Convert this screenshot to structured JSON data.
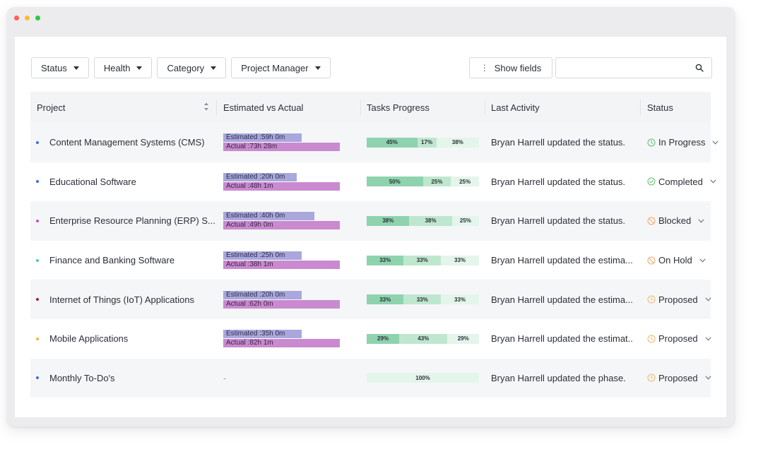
{
  "filters": [
    {
      "label": "Status",
      "name": "status-filter"
    },
    {
      "label": "Health",
      "name": "health-filter"
    },
    {
      "label": "Category",
      "name": "category-filter"
    },
    {
      "label": "Project Manager",
      "name": "project-manager-filter"
    }
  ],
  "show_fields_label": "Show fields",
  "search": {
    "placeholder": "",
    "value": ""
  },
  "columns": {
    "project": "Project",
    "est_vs_actual": "Estimated vs Actual",
    "tasks_progress": "Tasks Progress",
    "last_activity": "Last Activity",
    "status": "Status"
  },
  "rows": [
    {
      "project": "Content Management Systems (CMS)",
      "bullet_color": "#3f6fd8",
      "estimated": "Estimated :59h 0m",
      "actual": "Actual :73h 28m",
      "est_ratio": 0.67,
      "progress": [
        {
          "label": "45%",
          "value": 45
        },
        {
          "label": "17%",
          "value": 17
        },
        {
          "label": "38%",
          "value": 38
        }
      ],
      "activity": "Bryan Harrell updated the status.",
      "status": "In Progress",
      "status_icon": "clock-icon",
      "status_color": "#5cbf6a"
    },
    {
      "project": "Educational Software",
      "bullet_color": "#3f6fd8",
      "estimated": "Estimated :20h 0m",
      "actual": "Actual :48h 1m",
      "est_ratio": 0.63,
      "progress": [
        {
          "label": "50%",
          "value": 50
        },
        {
          "label": "25%",
          "value": 25
        },
        {
          "label": "25%",
          "value": 25
        }
      ],
      "activity": "Bryan Harrell updated the status.",
      "status": "Completed",
      "status_icon": "check-circle-icon",
      "status_color": "#5cbf6a"
    },
    {
      "project": "Enterprise Resource Planning (ERP) S...",
      "bullet_color": "#c352c9",
      "estimated": "Estimated :40h 0m",
      "actual": "Actual :49h 0m",
      "est_ratio": 0.78,
      "progress": [
        {
          "label": "38%",
          "value": 38
        },
        {
          "label": "38%",
          "value": 38
        },
        {
          "label": "25%",
          "value": 24
        }
      ],
      "activity": "Bryan Harrell updated the status.",
      "status": "Blocked",
      "status_icon": "blocked-icon",
      "status_color": "#f0a86a"
    },
    {
      "project": "Finance and Banking Software",
      "bullet_color": "#4fc3c4",
      "estimated": "Estimated :25h 0m",
      "actual": "Actual :38h 1m",
      "est_ratio": 0.67,
      "progress": [
        {
          "label": "33%",
          "value": 33
        },
        {
          "label": "33%",
          "value": 33
        },
        {
          "label": "33%",
          "value": 34
        }
      ],
      "activity": "Bryan Harrell updated the estima...",
      "status": "On Hold",
      "status_icon": "blocked-icon",
      "status_color": "#f0a86a"
    },
    {
      "project": "Internet of Things (IoT) Applications",
      "bullet_color": "#a3262e",
      "estimated": "Estimated :20h 0m",
      "actual": "Actual :62h 0m",
      "est_ratio": 0.67,
      "progress": [
        {
          "label": "33%",
          "value": 33
        },
        {
          "label": "33%",
          "value": 33
        },
        {
          "label": "33%",
          "value": 34
        }
      ],
      "activity": "Bryan Harrell updated the estima...",
      "status": "Proposed",
      "status_icon": "clock-icon",
      "status_color": "#f0b866"
    },
    {
      "project": "Mobile Applications",
      "bullet_color": "#f5b73a",
      "estimated": "Estimated :35h 0m",
      "actual": "Actual :82h 1m",
      "est_ratio": 0.67,
      "progress": [
        {
          "label": "29%",
          "value": 29
        },
        {
          "label": "43%",
          "value": 43
        },
        {
          "label": "29%",
          "value": 28
        }
      ],
      "activity": "Bryan Harrell updated the estimat..",
      "status": "Proposed",
      "status_icon": "clock-icon",
      "status_color": "#f0b866"
    },
    {
      "project": "Monthly To-Do's",
      "bullet_color": "#3f6fd8",
      "estimated": "",
      "actual": "",
      "est_dash": "-",
      "est_ratio": 0,
      "progress": [
        {
          "label": "100%",
          "value": 100,
          "tone": "s3"
        }
      ],
      "activity": "Bryan Harrell updated the phase.",
      "status": "Proposed",
      "status_icon": "clock-icon",
      "status_color": "#f0b866"
    }
  ]
}
